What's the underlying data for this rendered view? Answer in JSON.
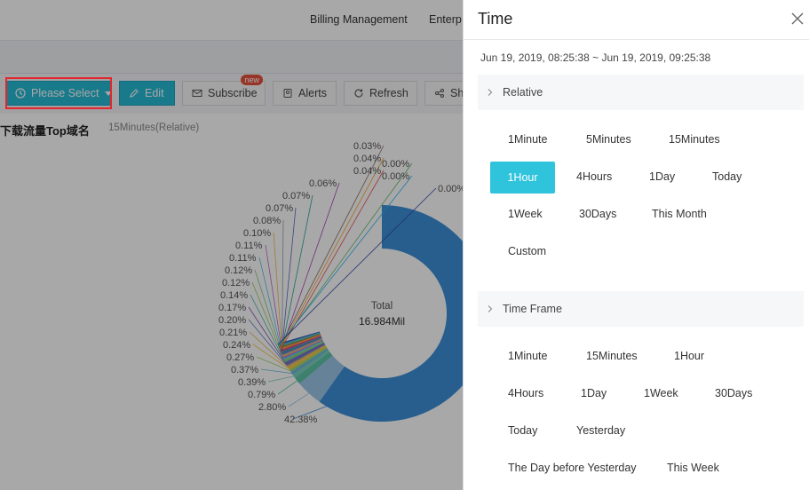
{
  "topnav": {
    "billing": "Billing Management",
    "enterprise": "Enterp"
  },
  "toolbar": {
    "please_select": "Please Select",
    "edit": "Edit",
    "subscribe": "Subscribe",
    "subscribe_badge": "new",
    "alerts": "Alerts",
    "refresh": "Refresh",
    "share": "Sh"
  },
  "chart": {
    "title": "下载流量Top域名",
    "subtitle": "15Minutes(Relative)",
    "center_label": "Total",
    "center_value": "16.984Mil"
  },
  "chart_data": {
    "type": "pie",
    "donut": true,
    "values_percent": [
      42.38,
      2.8,
      0.79,
      0.39,
      0.37,
      0.27,
      0.24,
      0.21,
      0.2,
      0.17,
      0.14,
      0.12,
      0.12,
      0.11,
      0.11,
      0.1,
      0.08,
      0.07,
      0.07,
      0.06,
      0.04,
      0.04,
      0.03,
      0.0,
      0.0,
      0.0
    ],
    "labels": [
      "42.38%",
      "2.80%",
      "0.79%",
      "0.39%",
      "0.37%",
      "0.27%",
      "0.24%",
      "0.21%",
      "0.20%",
      "0.17%",
      "0.14%",
      "0.12%",
      "0.12%",
      "0.11%",
      "0.11%",
      "0.10%",
      "0.08%",
      "0.07%",
      "0.07%",
      "0.06%",
      "0.04%",
      "0.04%",
      "0.03%",
      "0.00%",
      "0.00%",
      "0.00%"
    ],
    "colors": [
      "#3c8fd8",
      "#9cc6e8",
      "#5dc3a6",
      "#7ad1bc",
      "#6bb8d8",
      "#a0d468",
      "#f4c542",
      "#e6b85c",
      "#6a7fc8",
      "#7e57c2",
      "#4db6ac",
      "#9ccc65",
      "#81c784",
      "#4fc3f7",
      "#ba68c8",
      "#ffb74d",
      "#90a4ae",
      "#5c6bc0",
      "#26a69a",
      "#ab47bc",
      "#ef5350",
      "#ffa726",
      "#8d6e63",
      "#66bb6a",
      "#29b6f6",
      "#3949ab"
    ],
    "total_label": "Total",
    "total_value": "16.984Mil"
  },
  "drawer": {
    "title": "Time",
    "range": "Jun 19, 2019, 08:25:38 ~ Jun 19, 2019, 09:25:38",
    "relative": {
      "label": "Relative",
      "options": [
        "1Minute",
        "5Minutes",
        "15Minutes",
        "1Hour",
        "4Hours",
        "1Day",
        "Today",
        "1Week",
        "30Days",
        "This Month",
        "Custom"
      ],
      "selected": "1Hour"
    },
    "time_frame": {
      "label": "Time Frame",
      "options": [
        "1Minute",
        "15Minutes",
        "1Hour",
        "4Hours",
        "1Day",
        "1Week",
        "30Days",
        "Today",
        "Yesterday",
        "The Day before Yesterday",
        "This Week"
      ]
    }
  },
  "colors": {
    "accent": "#2fc3dc",
    "highlight": "#e3262d"
  }
}
